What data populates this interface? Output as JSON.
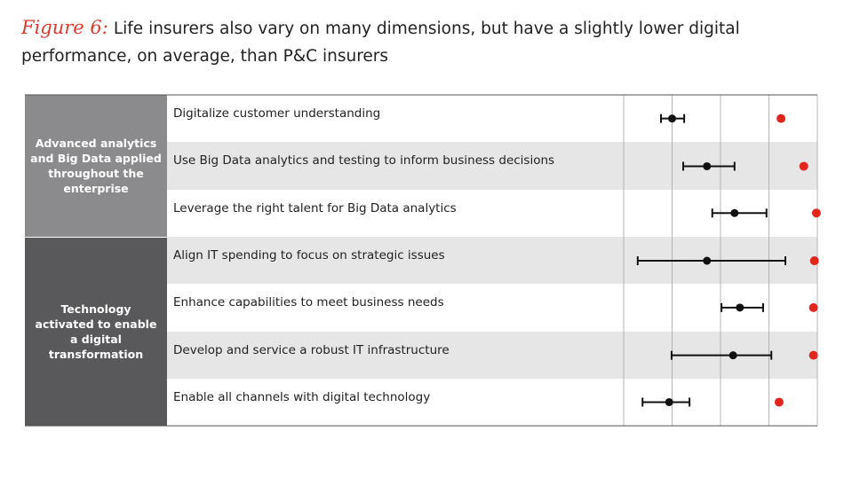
{
  "chart_data": {
    "type": "dot-range",
    "figure_label": "Figure 6:",
    "title": "Life insurers also vary on many dimensions, but have a slightly lower digital performance, on average, than P&C insurers",
    "xlim": [
      0,
      4
    ],
    "xticks": [
      0,
      1,
      2,
      3,
      4
    ],
    "grid": true,
    "range_color": "#111111",
    "benchmark_color": "#e3261d",
    "groups": [
      {
        "label": "Advanced analytics and Big Data applied throughout the enterprise",
        "color": "#8b8b8d",
        "rows": [
          0,
          1,
          2
        ]
      },
      {
        "label": "Technology activated to enable a digital transformation",
        "color": "#59595b",
        "rows": [
          3,
          4,
          5,
          6
        ]
      }
    ],
    "rows": [
      {
        "label": "Digitalize customer understanding",
        "mean": 1.0,
        "low": 0.77,
        "high": 1.25,
        "benchmark": 3.25
      },
      {
        "label": "Use Big Data analytics and testing to inform business decisions",
        "mean": 1.72,
        "low": 1.23,
        "high": 2.29,
        "benchmark": 3.72
      },
      {
        "label": "Leverage the right talent for Big Data analytics",
        "mean": 2.29,
        "low": 1.83,
        "high": 2.95,
        "benchmark": 3.98
      },
      {
        "label": "Align IT spending to focus on strategic issues",
        "mean": 1.72,
        "low": 0.29,
        "high": 3.34,
        "benchmark": 3.94
      },
      {
        "label": "Enhance capabilities to meet business needs",
        "mean": 2.4,
        "low": 2.02,
        "high": 2.88,
        "benchmark": 3.92
      },
      {
        "label": "Develop and service a robust IT infrastructure",
        "mean": 2.26,
        "low": 0.99,
        "high": 3.05,
        "benchmark": 3.92
      },
      {
        "label": "Enable all channels with digital technology",
        "mean": 0.94,
        "low": 0.39,
        "high": 1.36,
        "benchmark": 3.21
      }
    ]
  }
}
